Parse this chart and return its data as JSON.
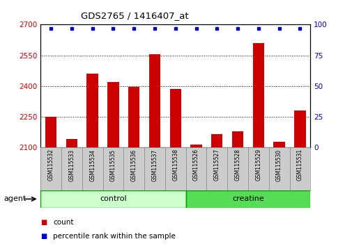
{
  "title": "GDS2765 / 1416407_at",
  "samples": [
    "GSM115532",
    "GSM115533",
    "GSM115534",
    "GSM115535",
    "GSM115536",
    "GSM115537",
    "GSM115538",
    "GSM115526",
    "GSM115527",
    "GSM115528",
    "GSM115529",
    "GSM115530",
    "GSM115531"
  ],
  "counts": [
    2252,
    2143,
    2460,
    2420,
    2395,
    2555,
    2385,
    2115,
    2165,
    2180,
    2610,
    2130,
    2280
  ],
  "percentiles": [
    97,
    97,
    97,
    97,
    97,
    97,
    97,
    97,
    97,
    97,
    97,
    97,
    97
  ],
  "groups": [
    "control",
    "control",
    "control",
    "control",
    "control",
    "control",
    "control",
    "creatine",
    "creatine",
    "creatine",
    "creatine",
    "creatine",
    "creatine"
  ],
  "ylim_left": [
    2100,
    2700
  ],
  "ylim_right": [
    0,
    100
  ],
  "yticks_left": [
    2100,
    2250,
    2400,
    2550,
    2700
  ],
  "yticks_right": [
    0,
    25,
    50,
    75,
    100
  ],
  "bar_color": "#cc0000",
  "dot_color": "#0000cc",
  "control_color": "#ccffcc",
  "creatine_color": "#55dd55",
  "border_color": "#009900",
  "cell_color": "#cccccc",
  "cell_border_color": "#888888",
  "bg_color": "#ffffff",
  "plot_bg_color": "#ffffff",
  "title_color": "#000000",
  "bar_width": 0.55,
  "agent_label": "agent",
  "control_label": "control",
  "creatine_label": "creatine",
  "legend_count": "count",
  "legend_pct": "percentile rank within the sample"
}
